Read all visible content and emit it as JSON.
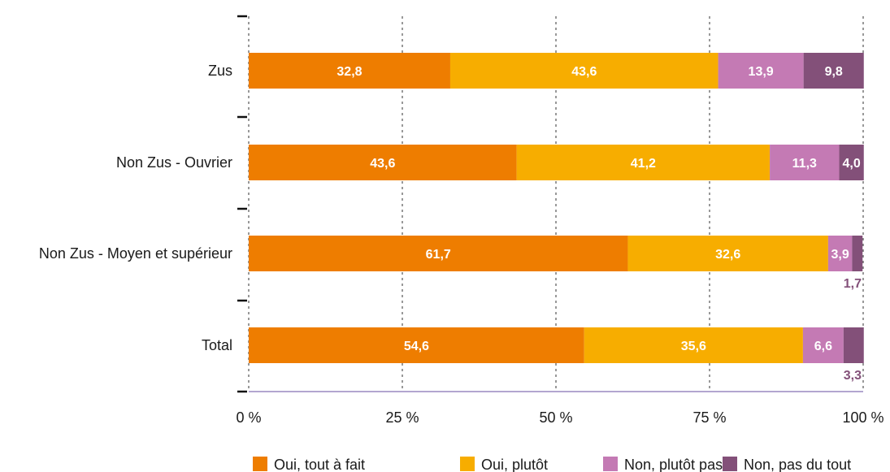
{
  "chart_data": {
    "type": "bar",
    "orientation": "horizontal",
    "stacked": true,
    "title": "",
    "xlabel": "",
    "ylabel": "",
    "xlim": [
      0,
      100
    ],
    "categories": [
      "Zus",
      "Non Zus  - Ouvrier",
      "Non Zus - Moyen et supérieur",
      "Total"
    ],
    "x_ticks": [
      "0 %",
      "25 %",
      "50 %",
      "75 %",
      "100 %"
    ],
    "grid": "vertical dashed",
    "legend_position": "bottom",
    "series": [
      {
        "name": "Oui, tout à fait",
        "color": "#ee7d00",
        "values": [
          32.8,
          43.6,
          61.7,
          54.6
        ],
        "labels": [
          "32,8",
          "43,6",
          "61,7",
          "54,6"
        ]
      },
      {
        "name": "Oui, plutôt",
        "color": "#f7ad00",
        "values": [
          43.6,
          41.2,
          32.6,
          35.6
        ],
        "labels": [
          "43,6",
          "41,2",
          "32,6",
          "35,6"
        ]
      },
      {
        "name": "Non, plutôt pas",
        "color": "#c47ab4",
        "values": [
          13.9,
          11.3,
          3.9,
          6.6
        ],
        "labels": [
          "13,9",
          "11,3",
          "3,9",
          "6,6"
        ]
      },
      {
        "name": "Non, pas du tout",
        "color": "#835079",
        "values": [
          9.8,
          4.0,
          1.7,
          3.3
        ],
        "labels": [
          "9,8",
          "4,0",
          "1,7",
          "3,3"
        ]
      }
    ]
  }
}
